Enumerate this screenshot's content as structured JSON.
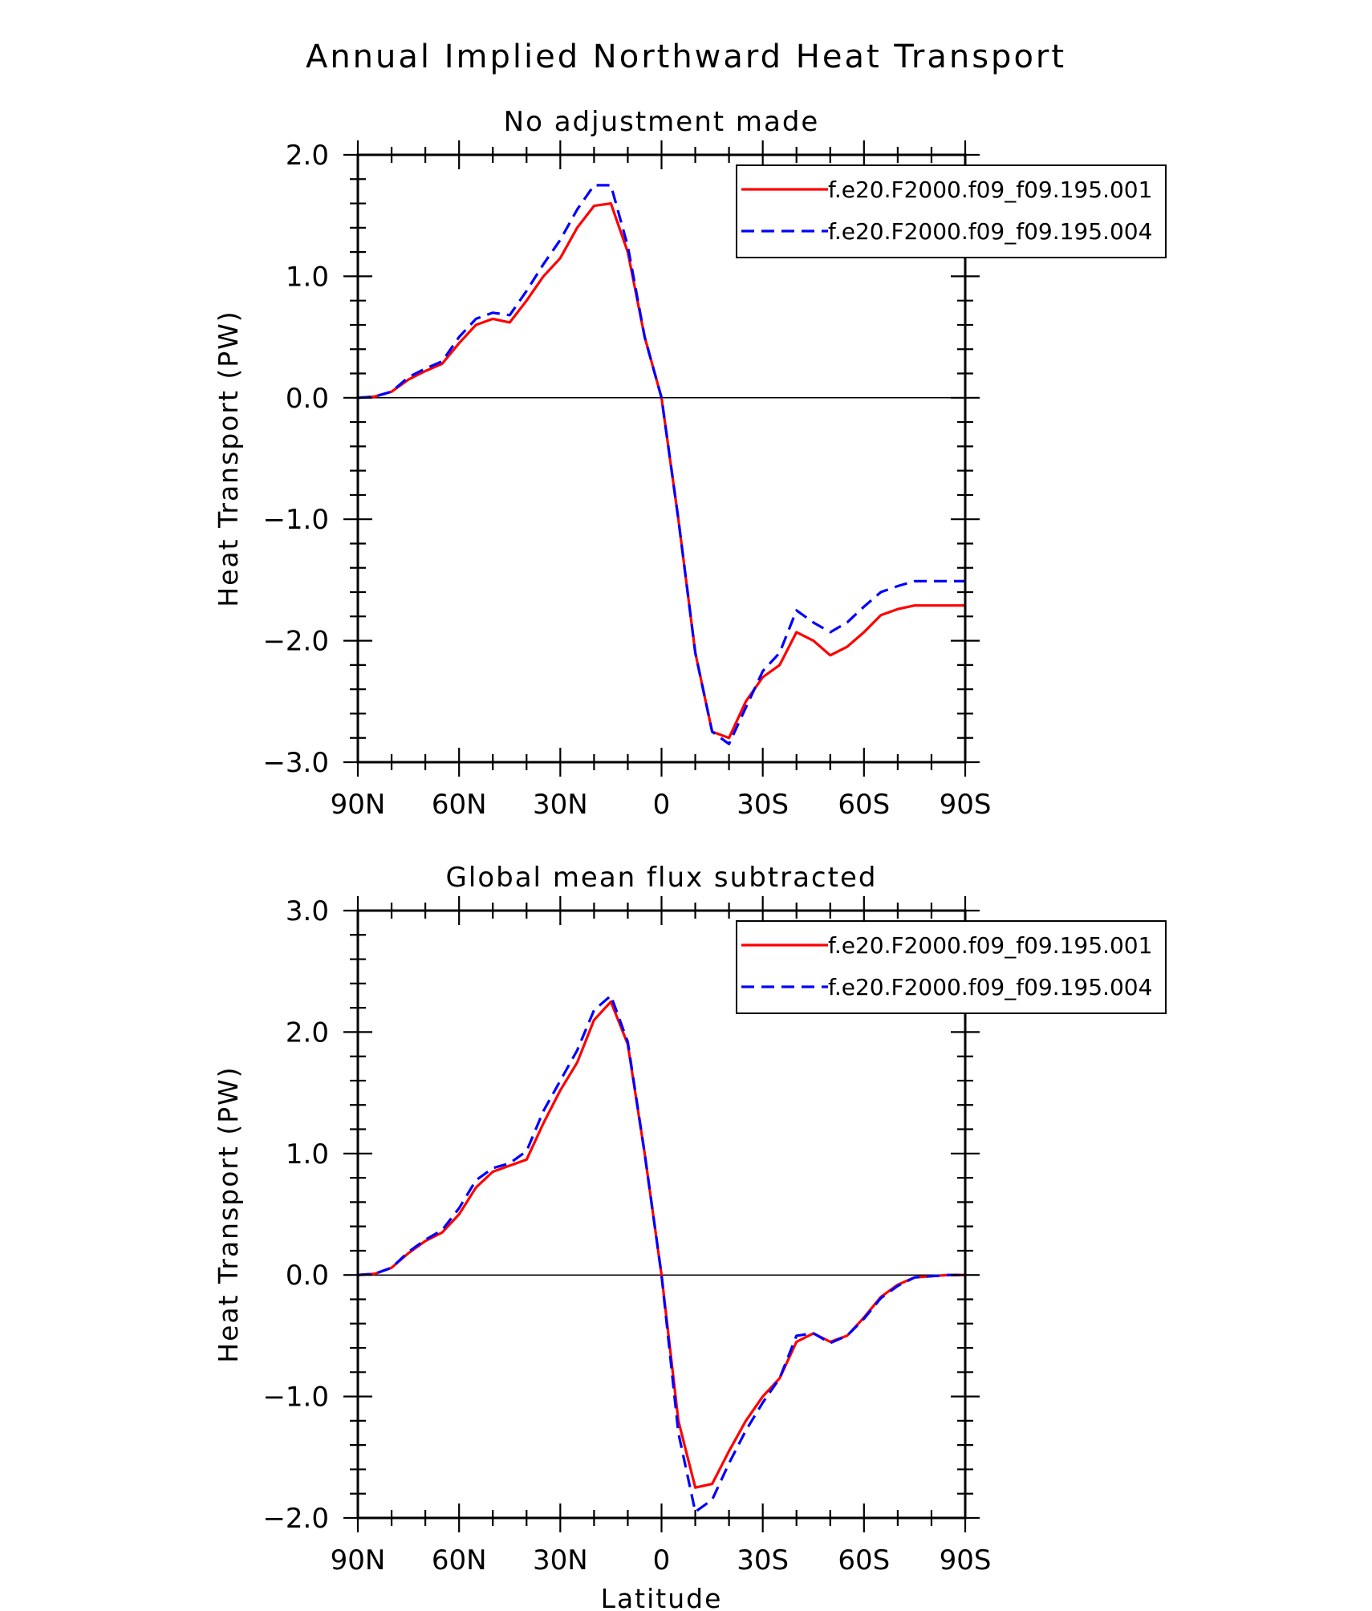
{
  "figure": {
    "title": "Annual Implied Northward Heat Transport",
    "xlabel": "Latitude"
  },
  "colors": {
    "series1": "#ff0000",
    "series2": "#0000ff"
  },
  "chart_data": [
    {
      "type": "line",
      "title": "No adjustment made",
      "xlabel": "",
      "ylabel": "Heat Transport (PW)",
      "xlim": [
        90,
        -90
      ],
      "ylim": [
        -3.0,
        2.0
      ],
      "xticks": [
        90,
        60,
        30,
        0,
        -30,
        -60,
        -90
      ],
      "xtick_labels": [
        "90N",
        "60N",
        "30N",
        "0",
        "30S",
        "60S",
        "90S"
      ],
      "yticks": [
        2.0,
        1.0,
        0.0,
        -1.0,
        -2.0,
        -3.0
      ],
      "ytick_labels": [
        "2.0",
        "1.0",
        "0.0",
        "−1.0",
        "−2.0",
        "−3.0"
      ],
      "legend": "top-right",
      "x": [
        90,
        85,
        80,
        75,
        70,
        65,
        60,
        55,
        50,
        45,
        40,
        35,
        30,
        25,
        20,
        15,
        10,
        5,
        0,
        -5,
        -10,
        -15,
        -20,
        -25,
        -30,
        -35,
        -40,
        -45,
        -50,
        -55,
        -60,
        -65,
        -70,
        -75,
        -80,
        -85,
        -90
      ],
      "series": [
        {
          "name": "f.e20.F2000.f09_f09.195.001",
          "style": "solid",
          "values": [
            0.0,
            0.01,
            0.05,
            0.15,
            0.22,
            0.28,
            0.45,
            0.6,
            0.65,
            0.62,
            0.8,
            1.0,
            1.15,
            1.4,
            1.58,
            1.6,
            1.2,
            0.5,
            0.0,
            -1.0,
            -2.1,
            -2.75,
            -2.8,
            -2.5,
            -2.3,
            -2.2,
            -1.93,
            -2.0,
            -2.12,
            -2.05,
            -1.93,
            -1.79,
            -1.74,
            -1.71,
            -1.71,
            -1.71,
            -1.71
          ]
        },
        {
          "name": "f.e20.F2000.f09_f09.195.004",
          "style": "dashed",
          "values": [
            0.0,
            0.01,
            0.05,
            0.17,
            0.24,
            0.3,
            0.5,
            0.65,
            0.7,
            0.68,
            0.88,
            1.1,
            1.3,
            1.55,
            1.75,
            1.75,
            1.25,
            0.5,
            0.0,
            -1.0,
            -2.1,
            -2.75,
            -2.85,
            -2.55,
            -2.25,
            -2.1,
            -1.75,
            -1.85,
            -1.93,
            -1.85,
            -1.72,
            -1.6,
            -1.55,
            -1.51,
            -1.51,
            -1.51,
            -1.51
          ]
        }
      ]
    },
    {
      "type": "line",
      "title": "Global mean flux subtracted",
      "xlabel": "Latitude",
      "ylabel": "Heat Transport (PW)",
      "xlim": [
        90,
        -90
      ],
      "ylim": [
        -2.0,
        3.0
      ],
      "xticks": [
        90,
        60,
        30,
        0,
        -30,
        -60,
        -90
      ],
      "xtick_labels": [
        "90N",
        "60N",
        "30N",
        "0",
        "30S",
        "60S",
        "90S"
      ],
      "yticks": [
        3.0,
        2.0,
        1.0,
        0.0,
        -1.0,
        -2.0
      ],
      "ytick_labels": [
        "3.0",
        "2.0",
        "1.0",
        "0.0",
        "−1.0",
        "−2.0"
      ],
      "legend": "top-right",
      "x": [
        90,
        85,
        80,
        75,
        70,
        65,
        60,
        55,
        50,
        45,
        40,
        35,
        30,
        25,
        20,
        15,
        10,
        5,
        0,
        -5,
        -10,
        -15,
        -20,
        -25,
        -30,
        -35,
        -40,
        -45,
        -50,
        -55,
        -60,
        -65,
        -70,
        -75,
        -80,
        -85,
        -90
      ],
      "series": [
        {
          "name": "f.e20.F2000.f09_f09.195.001",
          "style": "solid",
          "values": [
            0.0,
            0.01,
            0.06,
            0.18,
            0.28,
            0.35,
            0.5,
            0.72,
            0.85,
            0.9,
            0.95,
            1.25,
            1.52,
            1.75,
            2.1,
            2.25,
            1.9,
            1.0,
            0.0,
            -1.2,
            -1.75,
            -1.72,
            -1.45,
            -1.2,
            -1.0,
            -0.85,
            -0.55,
            -0.48,
            -0.55,
            -0.5,
            -0.35,
            -0.18,
            -0.08,
            -0.02,
            -0.01,
            0.0,
            0.0
          ]
        },
        {
          "name": "f.e20.F2000.f09_f09.195.004",
          "style": "dashed",
          "values": [
            0.0,
            0.01,
            0.06,
            0.19,
            0.29,
            0.37,
            0.55,
            0.78,
            0.88,
            0.92,
            1.02,
            1.35,
            1.6,
            1.85,
            2.18,
            2.3,
            1.92,
            1.0,
            0.0,
            -1.3,
            -1.95,
            -1.85,
            -1.55,
            -1.28,
            -1.05,
            -0.85,
            -0.5,
            -0.48,
            -0.56,
            -0.5,
            -0.36,
            -0.19,
            -0.09,
            -0.02,
            -0.01,
            0.0,
            0.0
          ]
        }
      ]
    }
  ]
}
